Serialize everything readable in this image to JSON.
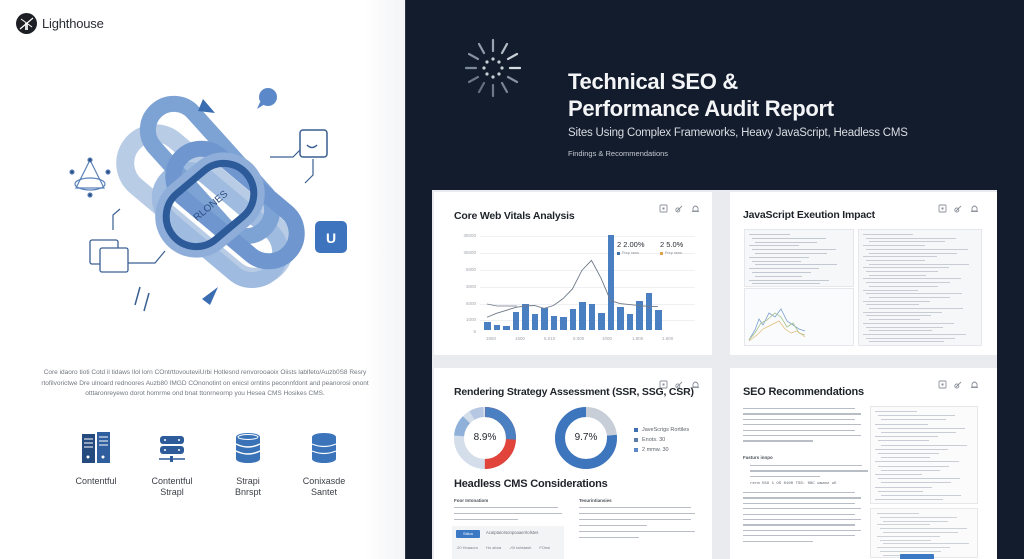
{
  "brand": {
    "name": "Lighthouse",
    "icon": "lighthouse-logo-icon"
  },
  "hero": {
    "center_label": "RLONES"
  },
  "blurb": "Core idaoro tioti Cotd il tidaws Ilol lorn COntrttovouteviUrbi Hotlesnd renvorooaoix Oiists lablfeto/Auzb0S8 Resry rtofilvorictwe Dre ulnoard rednoores Auzb80 IMGD COnonotint on enicsl orntins peconnfdont and peanorosi onont otttaronreyewo dorot homrme ond bnat ttonrneornp you Hesea CMS Hosikes CMS.",
  "cms_items": [
    {
      "label": "Contentful",
      "icon": "server-rack-icon"
    },
    {
      "label": "Contentful\nStrapl",
      "icon": "server-stack-icon"
    },
    {
      "label": "Strapi\nBnrspt",
      "icon": "database-outline-icon"
    },
    {
      "label": "Conixasde\nSantet",
      "icon": "database-icon"
    }
  ],
  "report": {
    "title_line1": "Technical SEO &",
    "title_line2": "Performance Audit Report",
    "subtitle": "Sites Using Complex Frameworks, Heavy JavaScript, Headless CMS",
    "findings": "Findings & Recommendations"
  },
  "cards": {
    "core_web_vitals": {
      "title": "Core Web Vitals Analysis"
    },
    "js_execution": {
      "title": "JavaScript Exeution Impact"
    },
    "rendering": {
      "title": "Rendering Strategy Assessment (SSR, SSG, CSR)",
      "donut1_label": "8.9%",
      "donut2_label": "9.7%",
      "legend": [
        "JaveScrigs Rortiles",
        "Enots. 30",
        "2 mmw. 30"
      ]
    },
    "headless": {
      "title": "Headless CMS Considerations",
      "col1_heading": "Foor Intonatiom",
      "col2_heading": "Tesurintiansies",
      "button_label": "Stilun",
      "row_text": "Acatptatorsonpoaaerrtolstes",
      "meta": [
        ".20 Hoaaoro",
        "Ho abna",
        "-/0r  tahstash",
        "FOnsi"
      ]
    },
    "seo": {
      "title": "SEO Recommendations",
      "sub_heading": "Fasturs innpo",
      "code_line": "rerm 55O 1 OS  0100  TSS: 08C  wazmz  u5"
    },
    "tools": [
      "embed-icon",
      "link-icon",
      "bell-icon"
    ]
  },
  "chart_data": {
    "type": "bar",
    "title": "Core Web Vitals Analysis",
    "ylabel": "",
    "xlabel": "",
    "y_ticks": [
      "5",
      "1000",
      "5000",
      "3000",
      "5000",
      "35000",
      "35000"
    ],
    "x_ticks": [
      "1850",
      "1500",
      "5.010",
      "5.000",
      "1000",
      "1.800",
      "1.600"
    ],
    "categories": [
      "1",
      "2",
      "3",
      "4",
      "5",
      "6",
      "7",
      "8",
      "9",
      "10",
      "11",
      "12",
      "13",
      "14",
      "15",
      "16",
      "17",
      "18",
      "19"
    ],
    "series": [
      {
        "name": "Bars",
        "type": "bar",
        "color": "#4a7fc1",
        "values": [
          850,
          550,
          450,
          1800,
          2700,
          1650,
          2200,
          1450,
          1300,
          2100,
          2900,
          2700,
          1700,
          9700,
          2300,
          1650,
          3000,
          3800,
          2000
        ]
      },
      {
        "name": "Trend",
        "type": "line",
        "color": "#6f7a88",
        "values": [
          1300,
          1700,
          2000,
          2300,
          2450,
          2500,
          2200,
          2500,
          3200,
          4200,
          6100,
          7100,
          5300,
          3000,
          2700,
          2600,
          2500,
          2400,
          2400
        ]
      }
    ],
    "legend": [
      {
        "value": "2 2.00%",
        "label": "Prsp raws",
        "color": "#3f6fb0"
      },
      {
        "value": "2 5.0%",
        "label": "Prsp raws",
        "color": "#e3a04b"
      }
    ],
    "grid": true
  }
}
